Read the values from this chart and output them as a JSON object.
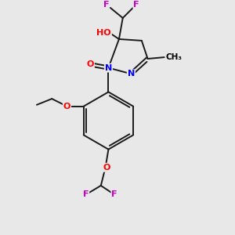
{
  "background_color": "#e8e8e8",
  "atom_colors": {
    "C": "#000000",
    "H": "#000000",
    "O": "#ff0000",
    "N": "#0000ff",
    "F": "#cc00cc"
  },
  "bond_color": "#1a1a1a",
  "figsize": [
    3.0,
    3.0
  ],
  "dpi": 100,
  "bond_lw": 1.4,
  "font_size": 8.0
}
